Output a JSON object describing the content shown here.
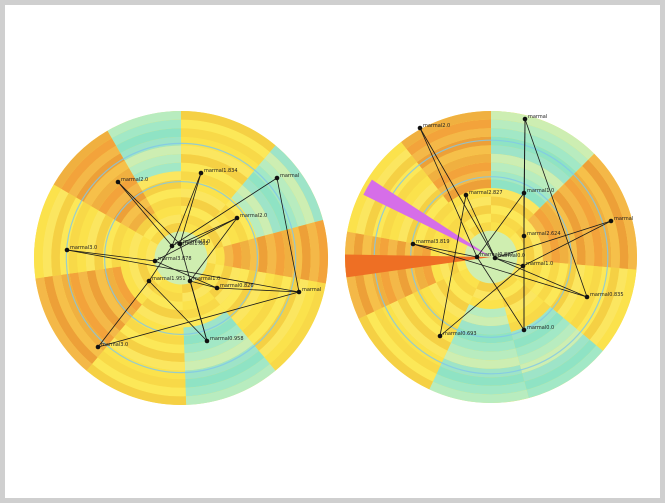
{
  "colors": {
    "frame": "#cfcfcf",
    "yellow": "#fbe04a",
    "orange": "#f3a13a",
    "teal": "#8fe3c4",
    "highlight_orange": "#ee6f24",
    "highlight_magenta": "#d66ee8",
    "edge": "#1a1a1a",
    "node": "#111111",
    "ring_line": "#7fc7e8"
  },
  "diagrams": [
    {
      "name": "left-radial",
      "nodes": [
        {
          "label": "marmal1.834"
        },
        {
          "label": "marmal2.0"
        },
        {
          "label": "marmal"
        },
        {
          "label": "marmal2.0"
        },
        {
          "label": "marmal3.0"
        },
        {
          "label": "marmal1.0"
        },
        {
          "label": "marmal1.951"
        },
        {
          "label": "marmal3.878"
        },
        {
          "label": "marmal1.665"
        },
        {
          "label": "marmal3.0"
        },
        {
          "label": "marmal0.826"
        },
        {
          "label": "marmal"
        },
        {
          "label": "marmal3.0"
        },
        {
          "label": "marmal0.958"
        }
      ]
    },
    {
      "name": "right-radial",
      "nodes": [
        {
          "label": "marmal2.0"
        },
        {
          "label": "marmal"
        },
        {
          "label": "marmal2.827"
        },
        {
          "label": "marmal1.0"
        },
        {
          "label": "marmal"
        },
        {
          "label": "marmal3.819"
        },
        {
          "label": "marmal2.624"
        },
        {
          "label": "marmal1.0"
        },
        {
          "label": "marmal0.827"
        },
        {
          "label": "marmal0.0"
        },
        {
          "label": "marmal0.835"
        },
        {
          "label": "marmal0.0"
        },
        {
          "label": "marmal0.693"
        }
      ]
    }
  ]
}
